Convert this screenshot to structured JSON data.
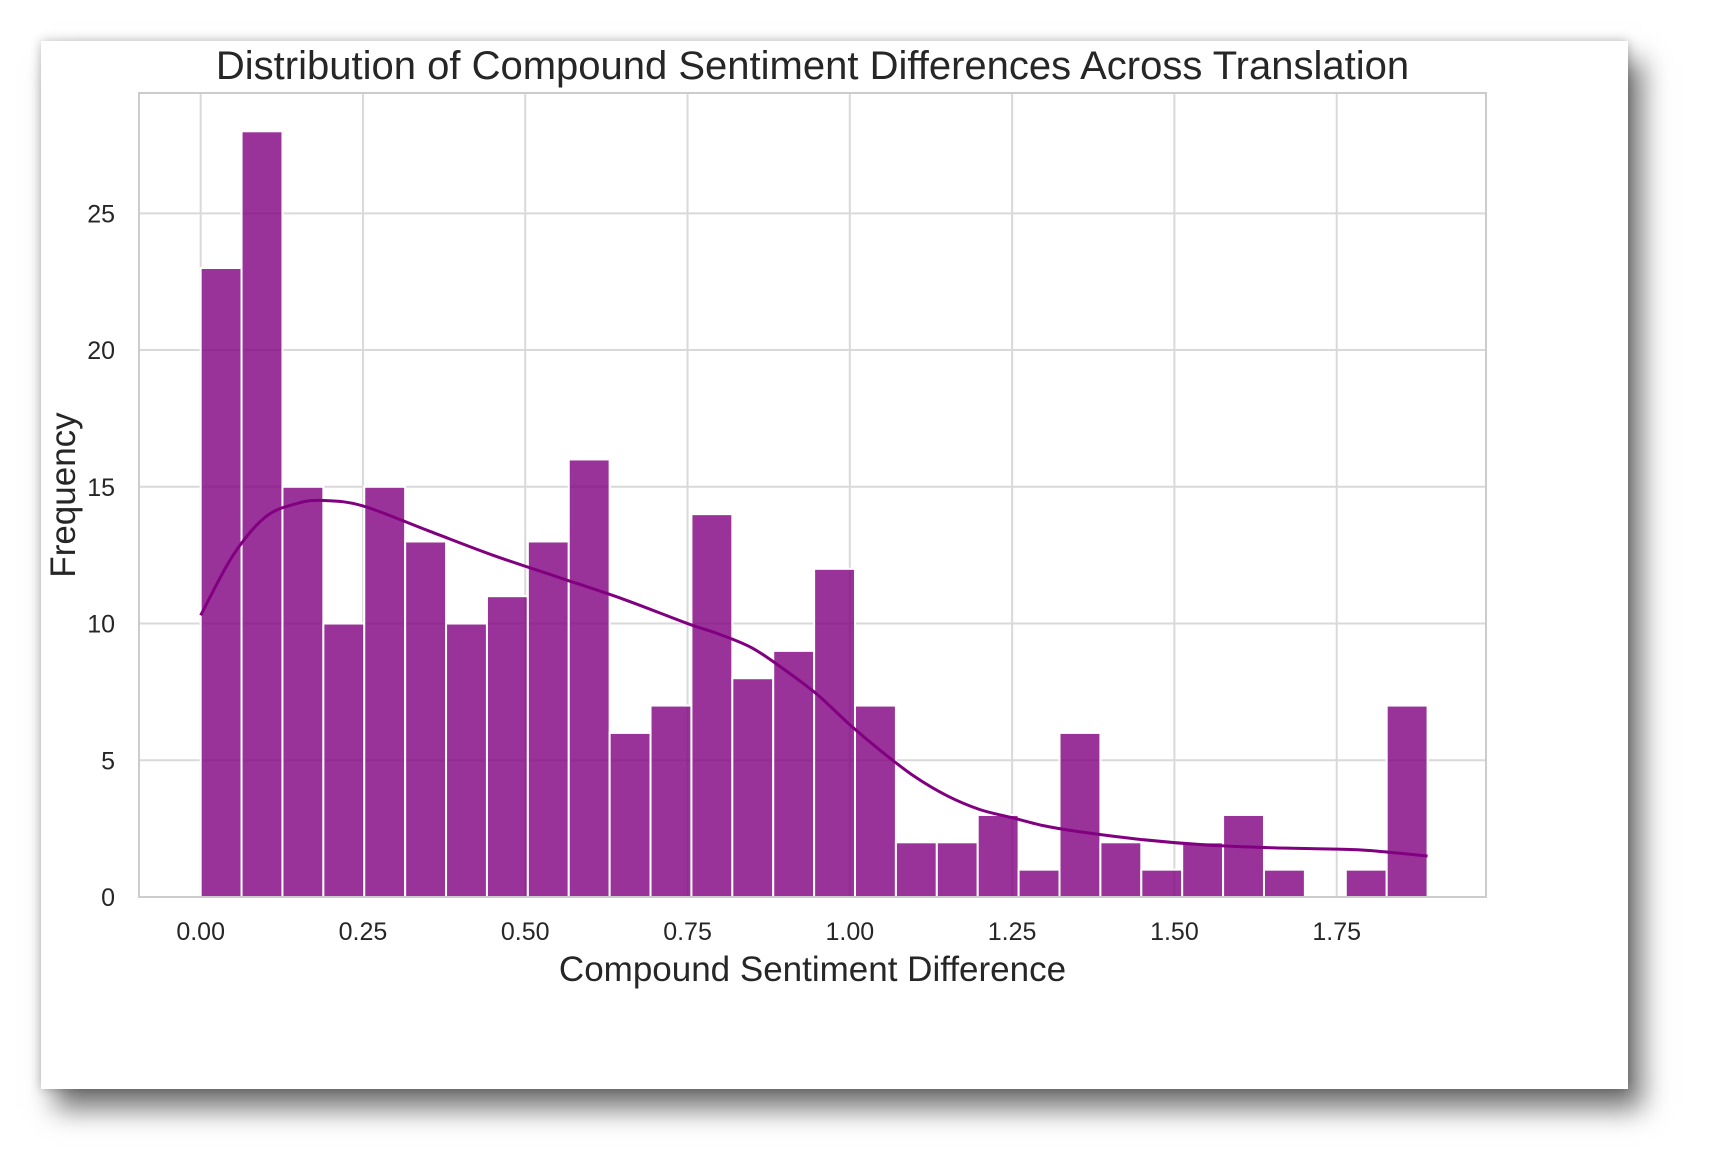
{
  "chart_data": {
    "type": "bar",
    "subtype": "histogram_with_kde",
    "title": "Distribution of Compound Sentiment Differences Across Translation",
    "xlabel": "Compound Sentiment Difference",
    "ylabel": "Frequency",
    "xlim": [
      -0.095,
      1.98
    ],
    "ylim": [
      0,
      29.4
    ],
    "x_ticks": [
      0.0,
      0.25,
      0.5,
      0.75,
      1.0,
      1.25,
      1.5,
      1.75
    ],
    "x_tick_labels": [
      "0.00",
      "0.25",
      "0.50",
      "0.75",
      "1.00",
      "1.25",
      "1.50",
      "1.75"
    ],
    "y_ticks": [
      0,
      5,
      10,
      15,
      20,
      25
    ],
    "y_tick_labels": [
      "0",
      "5",
      "10",
      "15",
      "20",
      "25"
    ],
    "grid": true,
    "legend": false,
    "bar_color": "#800080",
    "bar_opacity": 0.8,
    "bar_edge_color": "#ffffff",
    "kde_color": "#800080",
    "bins": {
      "start": 0.0,
      "width": 0.063,
      "counts": [
        23,
        28,
        15,
        10,
        15,
        13,
        10,
        11,
        13,
        16,
        6,
        7,
        14,
        8,
        9,
        12,
        7,
        2,
        2,
        3,
        1,
        6,
        2,
        1,
        2,
        3,
        1,
        0,
        1,
        7
      ]
    },
    "kde": {
      "x": [
        0.0,
        0.05,
        0.1,
        0.15,
        0.19,
        0.25,
        0.35,
        0.45,
        0.55,
        0.65,
        0.75,
        0.8,
        0.85,
        0.9,
        0.95,
        1.0,
        1.05,
        1.1,
        1.15,
        1.2,
        1.25,
        1.3,
        1.35,
        1.45,
        1.55,
        1.65,
        1.75,
        1.8,
        1.89
      ],
      "y": [
        10.3,
        12.5,
        13.9,
        14.4,
        14.5,
        14.3,
        13.4,
        12.5,
        11.7,
        10.9,
        10.0,
        9.6,
        9.1,
        8.3,
        7.4,
        6.3,
        5.3,
        4.4,
        3.7,
        3.2,
        2.9,
        2.6,
        2.4,
        2.1,
        1.9,
        1.8,
        1.75,
        1.7,
        1.5
      ]
    }
  }
}
